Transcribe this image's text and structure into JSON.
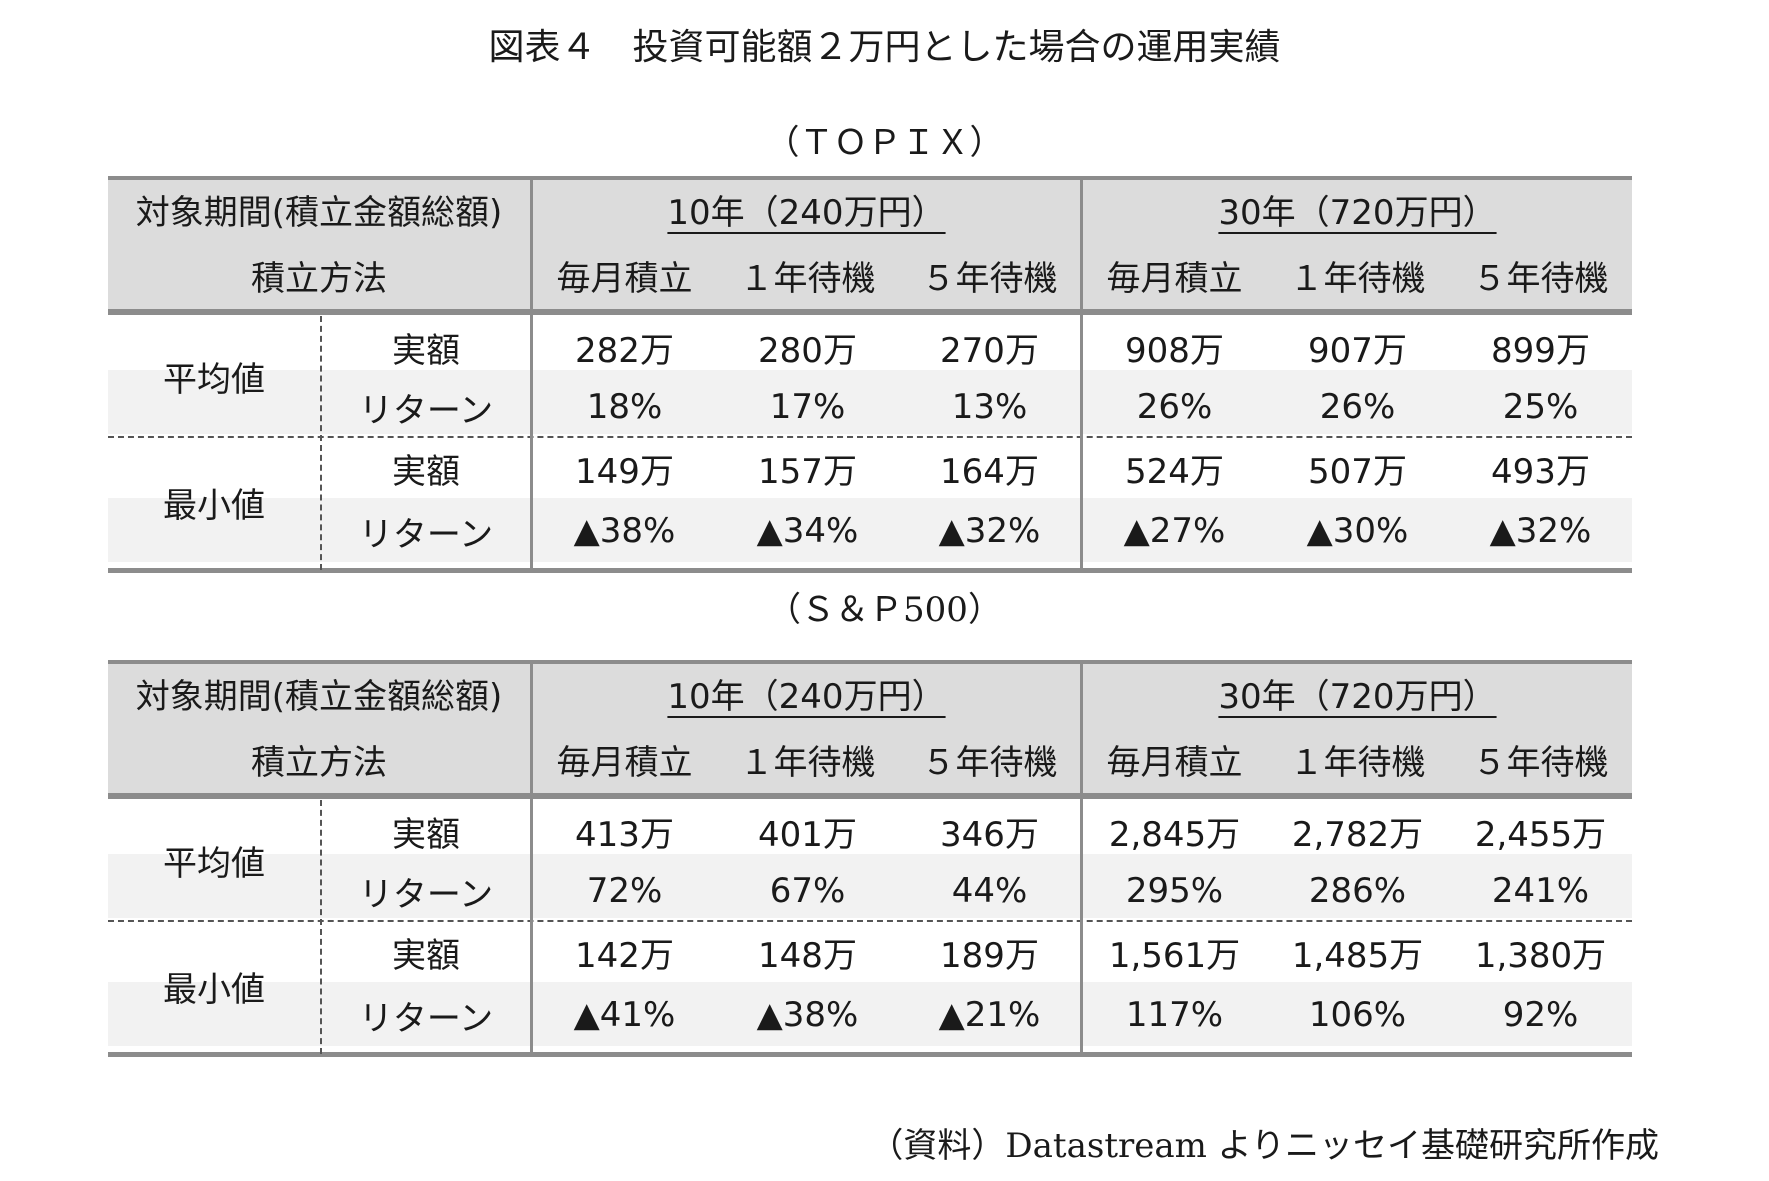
{
  "figure_title": "図表４　投資可能額２万円とした場合の運用実績",
  "tables": [
    {
      "subtitle": "（ＴＯＰＩＸ）",
      "header": {
        "period_label": "対象期間(積立金額総額)",
        "method_label": "積立方法",
        "period_10": "10年（240万円）",
        "period_30": "30年（720万円）",
        "methods": [
          "毎月積立",
          "１年待機",
          "５年待機",
          "毎月積立",
          "１年待機",
          "５年待機"
        ]
      },
      "groups": [
        {
          "label": "平均値",
          "rows": [
            {
              "metric": "実額",
              "values": [
                "282万",
                "280万",
                "270万",
                "908万",
                "907万",
                "899万"
              ]
            },
            {
              "metric": "リターン",
              "values": [
                "18%",
                "17%",
                "13%",
                "26%",
                "26%",
                "25%"
              ]
            }
          ]
        },
        {
          "label": "最小値",
          "rows": [
            {
              "metric": "実額",
              "values": [
                "149万",
                "157万",
                "164万",
                "524万",
                "507万",
                "493万"
              ]
            },
            {
              "metric": "リターン",
              "values": [
                "▲38%",
                "▲34%",
                "▲32%",
                "▲27%",
                "▲30%",
                "▲32%"
              ]
            }
          ]
        }
      ]
    },
    {
      "subtitle": "（Ｓ＆Ｐ500）",
      "header": {
        "period_label": "対象期間(積立金額総額)",
        "method_label": "積立方法",
        "period_10": "10年（240万円）",
        "period_30": "30年（720万円）",
        "methods": [
          "毎月積立",
          "１年待機",
          "５年待機",
          "毎月積立",
          "１年待機",
          "５年待機"
        ]
      },
      "groups": [
        {
          "label": "平均値",
          "rows": [
            {
              "metric": "実額",
              "values": [
                "413万",
                "401万",
                "346万",
                "2,845万",
                "2,782万",
                "2,455万"
              ]
            },
            {
              "metric": "リターン",
              "values": [
                "72%",
                "67%",
                "44%",
                "295%",
                "286%",
                "241%"
              ]
            }
          ]
        },
        {
          "label": "最小値",
          "rows": [
            {
              "metric": "実額",
              "values": [
                "142万",
                "148万",
                "189万",
                "1,561万",
                "1,485万",
                "1,380万"
              ]
            },
            {
              "metric": "リターン",
              "values": [
                "▲41%",
                "▲38%",
                "▲21%",
                "117%",
                "106%",
                "92%"
              ]
            }
          ]
        }
      ]
    }
  ],
  "source": "（資料）Datastream よりニッセイ基礎研究所作成"
}
